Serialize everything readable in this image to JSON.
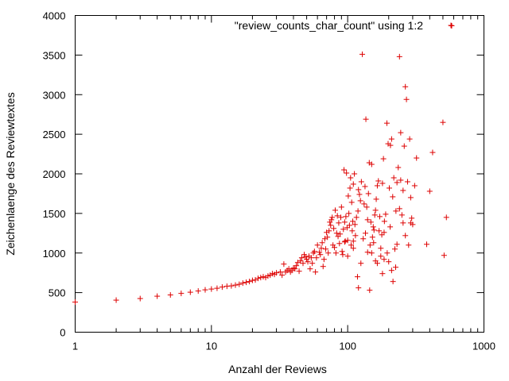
{
  "chart_data": {
    "type": "scatter",
    "title": "",
    "xlabel": "Anzahl der Reviews",
    "ylabel": "Zeichenlaenge des Reviewtextes",
    "xscale": "log",
    "xlim": [
      1,
      1000
    ],
    "ylim": [
      0,
      4000
    ],
    "x_ticks": [
      1,
      10,
      100,
      1000
    ],
    "x_tick_labels": [
      "1",
      "10",
      "100",
      "1000"
    ],
    "y_ticks": [
      0,
      500,
      1000,
      1500,
      2000,
      2500,
      3000,
      3500,
      4000
    ],
    "y_tick_labels": [
      "0",
      "500",
      "1000",
      "1500",
      "2000",
      "2500",
      "3000",
      "3500",
      "4000"
    ],
    "grid": false,
    "legend_position": "top-right",
    "marker": "+",
    "series": [
      {
        "name": "\"review_counts_char_count\" using 1:2",
        "color": "#dd0000",
        "points": [
          [
            1,
            380
          ],
          [
            2,
            405
          ],
          [
            3,
            425
          ],
          [
            4,
            455
          ],
          [
            5,
            470
          ],
          [
            6,
            490
          ],
          [
            7,
            505
          ],
          [
            8,
            520
          ],
          [
            9,
            535
          ],
          [
            10,
            545
          ],
          [
            11,
            555
          ],
          [
            12,
            570
          ],
          [
            13,
            580
          ],
          [
            14,
            585
          ],
          [
            15,
            595
          ],
          [
            16,
            605
          ],
          [
            17,
            620
          ],
          [
            18,
            630
          ],
          [
            19,
            640
          ],
          [
            20,
            655
          ],
          [
            21,
            660
          ],
          [
            22,
            680
          ],
          [
            23,
            690
          ],
          [
            24,
            700
          ],
          [
            25,
            690
          ],
          [
            26,
            710
          ],
          [
            27,
            720
          ],
          [
            28,
            740
          ],
          [
            29,
            730
          ],
          [
            30,
            750
          ],
          [
            32,
            760
          ],
          [
            33,
            720
          ],
          [
            34,
            860
          ],
          [
            35,
            760
          ],
          [
            36,
            780
          ],
          [
            37,
            800
          ],
          [
            38,
            760
          ],
          [
            39,
            780
          ],
          [
            40,
            810
          ],
          [
            41,
            800
          ],
          [
            42,
            840
          ],
          [
            43,
            880
          ],
          [
            44,
            770
          ],
          [
            45,
            900
          ],
          [
            46,
            940
          ],
          [
            47,
            870
          ],
          [
            48,
            980
          ],
          [
            49,
            950
          ],
          [
            50,
            920
          ],
          [
            51,
            890
          ],
          [
            52,
            960
          ],
          [
            53,
            800
          ],
          [
            54,
            940
          ],
          [
            55,
            870
          ],
          [
            56,
            1000
          ],
          [
            57,
            1020
          ],
          [
            58,
            760
          ],
          [
            59,
            940
          ],
          [
            60,
            1100
          ],
          [
            62,
            1010
          ],
          [
            63,
            980
          ],
          [
            64,
            1060
          ],
          [
            65,
            1130
          ],
          [
            66,
            830
          ],
          [
            67,
            920
          ],
          [
            68,
            1180
          ],
          [
            69,
            1050
          ],
          [
            70,
            1260
          ],
          [
            71,
            1200
          ],
          [
            72,
            1000
          ],
          [
            73,
            1280
          ],
          [
            74,
            1390
          ],
          [
            75,
            1350
          ],
          [
            76,
            1420
          ],
          [
            77,
            1450
          ],
          [
            78,
            1100
          ],
          [
            79,
            1310
          ],
          [
            80,
            1070
          ],
          [
            81,
            1540
          ],
          [
            82,
            1000
          ],
          [
            83,
            1250
          ],
          [
            84,
            1470
          ],
          [
            85,
            1210
          ],
          [
            86,
            1380
          ],
          [
            87,
            1120
          ],
          [
            88,
            1240
          ],
          [
            89,
            1450
          ],
          [
            90,
            1580
          ],
          [
            91,
            1020
          ],
          [
            92,
            980
          ],
          [
            93,
            1300
          ],
          [
            94,
            2050
          ],
          [
            95,
            1390
          ],
          [
            96,
            1150
          ],
          [
            97,
            1460
          ],
          [
            98,
            2010
          ],
          [
            99,
            1320
          ],
          [
            100,
            1160
          ],
          [
            101,
            1720
          ],
          [
            102,
            1500
          ],
          [
            103,
            1350
          ],
          [
            104,
            1820
          ],
          [
            105,
            1950
          ],
          [
            106,
            1100
          ],
          [
            107,
            1640
          ],
          [
            108,
            1280
          ],
          [
            109,
            1400
          ],
          [
            110,
            1060
          ],
          [
            112,
            2000
          ],
          [
            113,
            1360
          ],
          [
            114,
            1220
          ],
          [
            116,
            1450
          ],
          [
            118,
            700
          ],
          [
            119,
            1530
          ],
          [
            120,
            1800
          ],
          [
            122,
            1740
          ],
          [
            124,
            1660
          ],
          [
            126,
            1900
          ],
          [
            128,
            3510
          ],
          [
            130,
            1180
          ],
          [
            132,
            1620
          ],
          [
            134,
            1840
          ],
          [
            136,
            2690
          ],
          [
            138,
            1580
          ],
          [
            140,
            1420
          ],
          [
            142,
            1750
          ],
          [
            144,
            2140
          ],
          [
            146,
            1100
          ],
          [
            148,
            1390
          ],
          [
            150,
            2120
          ],
          [
            152,
            1200
          ],
          [
            154,
            1330
          ],
          [
            156,
            1290
          ],
          [
            158,
            1480
          ],
          [
            160,
            1540
          ],
          [
            162,
            1680
          ],
          [
            165,
            1850
          ],
          [
            168,
            1910
          ],
          [
            170,
            1280
          ],
          [
            172,
            1460
          ],
          [
            175,
            1060
          ],
          [
            178,
            1230
          ],
          [
            180,
            1880
          ],
          [
            183,
            2190
          ],
          [
            186,
            1400
          ],
          [
            190,
            1490
          ],
          [
            194,
            2640
          ],
          [
            198,
            2380
          ],
          [
            202,
            1820
          ],
          [
            206,
            2360
          ],
          [
            210,
            2440
          ],
          [
            214,
            1710
          ],
          [
            218,
            1950
          ],
          [
            222,
            1050
          ],
          [
            226,
            1530
          ],
          [
            230,
            1890
          ],
          [
            235,
            2080
          ],
          [
            240,
            3480
          ],
          [
            245,
            2520
          ],
          [
            250,
            1480
          ],
          [
            255,
            1790
          ],
          [
            260,
            2350
          ],
          [
            265,
            3100
          ],
          [
            270,
            2940
          ],
          [
            275,
            1900
          ],
          [
            280,
            1100
          ],
          [
            285,
            2440
          ],
          [
            290,
            1380
          ],
          [
            295,
            1440
          ],
          [
            300,
            1360
          ],
          [
            310,
            1850
          ],
          [
            320,
            2200
          ],
          [
            380,
            1110
          ],
          [
            400,
            1780
          ],
          [
            420,
            2270
          ],
          [
            500,
            2650
          ],
          [
            510,
            970
          ],
          [
            530,
            1450
          ],
          [
            580,
            3870
          ],
          [
            120,
            560
          ],
          [
            145,
            530
          ],
          [
            165,
            870
          ],
          [
            175,
            960
          ],
          [
            180,
            740
          ],
          [
            185,
            920
          ],
          [
            200,
            890
          ],
          [
            210,
            780
          ],
          [
            215,
            640
          ],
          [
            225,
            820
          ],
          [
            195,
            1000
          ],
          [
            150,
            1000
          ],
          [
            160,
            900
          ],
          [
            100,
            960
          ],
          [
            95,
            1140
          ],
          [
            125,
            870
          ],
          [
            135,
            1250
          ],
          [
            140,
            1010
          ],
          [
            110,
            1150
          ],
          [
            155,
            1130
          ],
          [
            185,
            1260
          ],
          [
            205,
            1330
          ],
          [
            240,
            1560
          ],
          [
            255,
            1380
          ],
          [
            230,
            1110
          ],
          [
            265,
            1220
          ],
          [
            245,
            1920
          ],
          [
            290,
            1700
          ],
          [
            110,
            1870
          ]
        ]
      }
    ]
  }
}
